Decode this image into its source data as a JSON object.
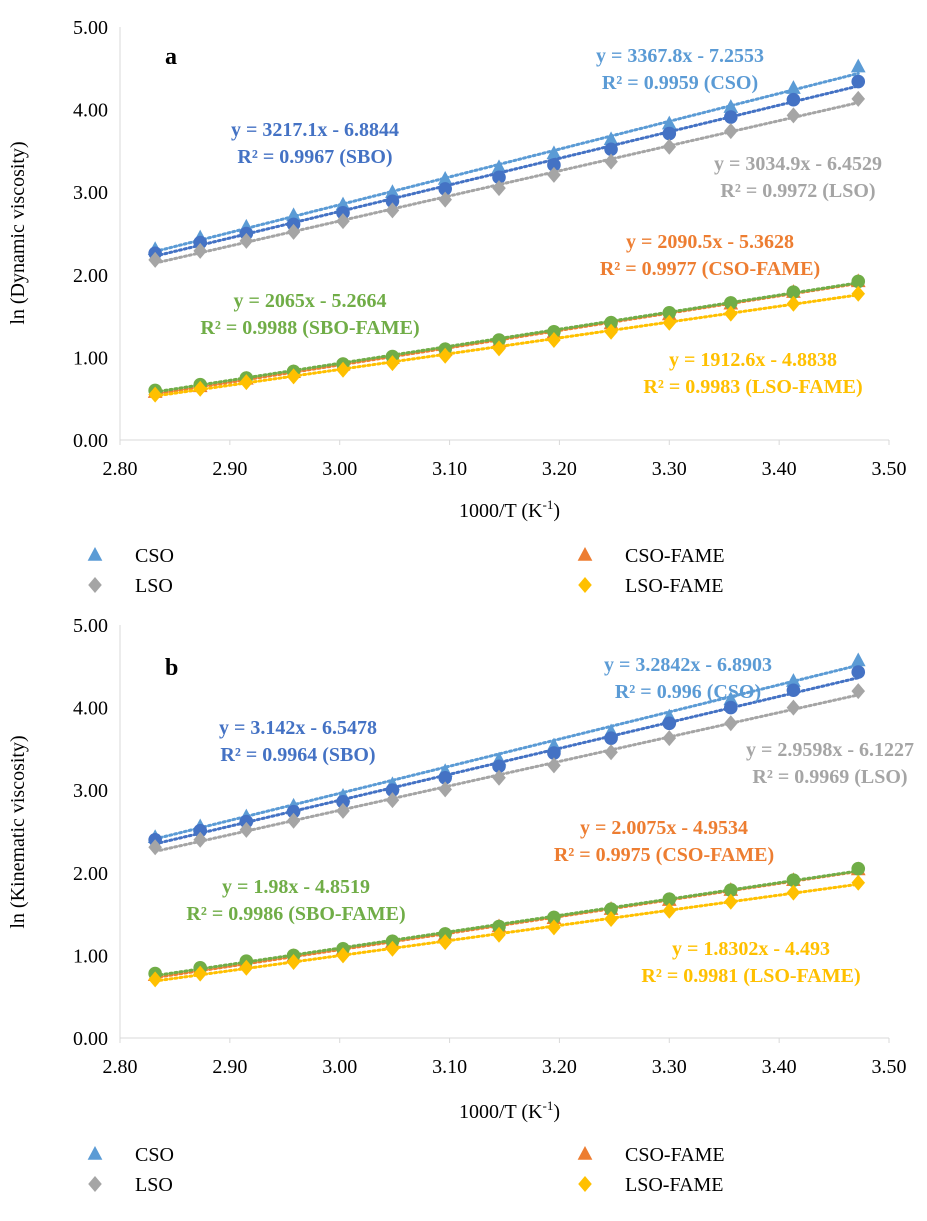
{
  "chart_data": [
    {
      "type": "scatter",
      "panel_label": "a",
      "xlabel": "1000/T (K",
      "xlabel_sup": "-1",
      "xlabel_end": ")",
      "ylabel": "ln (Dynamic viscosity)",
      "xlim": [
        2.8,
        3.5
      ],
      "ylim": [
        0.0,
        5.0
      ],
      "x_ticks": [
        "2.80",
        "2.90",
        "3.00",
        "3.10",
        "3.20",
        "3.30",
        "3.40",
        "3.50"
      ],
      "y_ticks": [
        "0.00",
        "1.00",
        "2.00",
        "3.00",
        "4.00",
        "5.00"
      ],
      "x": [
        2.832,
        2.873,
        2.915,
        2.958,
        3.003,
        3.048,
        3.096,
        3.145,
        3.195,
        3.247,
        3.3,
        3.356,
        3.413,
        3.472
      ],
      "series": [
        {
          "name": "CSO",
          "marker": "triangle",
          "color": "#5b9bd5",
          "trend": [
            3.3678,
            -7.2553
          ],
          "values": [
            2.31,
            2.45,
            2.58,
            2.72,
            2.85,
            3.0,
            3.16,
            3.3,
            3.47,
            3.64,
            3.83,
            4.03,
            4.26,
            4.52
          ]
        },
        {
          "name": "SBO",
          "marker": "circle",
          "color": "#4472c4",
          "trend": [
            3.2171,
            -6.8844
          ],
          "values": [
            2.26,
            2.39,
            2.5,
            2.61,
            2.75,
            2.89,
            3.04,
            3.18,
            3.33,
            3.52,
            3.71,
            3.91,
            4.12,
            4.34
          ]
        },
        {
          "name": "LSO",
          "marker": "diamond",
          "color": "#a5a5a5",
          "trend": [
            3.0349,
            -6.4529
          ],
          "values": [
            2.18,
            2.29,
            2.41,
            2.52,
            2.65,
            2.78,
            2.91,
            3.05,
            3.21,
            3.37,
            3.55,
            3.74,
            3.93,
            4.13
          ]
        },
        {
          "name": "CSO-FAME",
          "marker": "triangle",
          "color": "#ed7d31",
          "trend": [
            2.0905,
            -5.3628
          ],
          "values": [
            0.58,
            0.65,
            0.74,
            0.82,
            0.91,
            0.99,
            1.09,
            1.19,
            1.3,
            1.41,
            1.52,
            1.65,
            1.79,
            1.92
          ]
        },
        {
          "name": "SBO-FAME",
          "marker": "circle",
          "color": "#70ad47",
          "trend": [
            2.065,
            -5.2664
          ],
          "values": [
            0.6,
            0.67,
            0.75,
            0.83,
            0.92,
            1.01,
            1.1,
            1.21,
            1.31,
            1.42,
            1.54,
            1.66,
            1.79,
            1.92
          ]
        },
        {
          "name": "LSO-FAME",
          "marker": "diamond",
          "color": "#ffc000",
          "trend": [
            1.9126,
            -4.8838
          ],
          "values": [
            0.55,
            0.62,
            0.7,
            0.77,
            0.85,
            0.93,
            1.02,
            1.11,
            1.21,
            1.31,
            1.42,
            1.53,
            1.65,
            1.77
          ]
        }
      ],
      "annotations": [
        {
          "series": "CSO-trend",
          "color": "#5b9bd5",
          "line1": "y = 3367.8x - 7.2553",
          "line2": "R² = 0.9959 (CSO)"
        },
        {
          "series": "SBO-trend",
          "color": "#4472c4",
          "line1": "y = 3217.1x - 6.8844",
          "line2": "R² = 0.9967 (SBO)"
        },
        {
          "series": "LSO-trend",
          "color": "#a5a5a5",
          "line1": "y = 3034.9x - 6.4529",
          "line2": "R² = 0.9972 (LSO)"
        },
        {
          "series": "CSO-FAME-trend",
          "color": "#ed7d31",
          "line1": "y = 2090.5x - 5.3628",
          "line2": "R² = 0.9977 (CSO-FAME)"
        },
        {
          "series": "SBO-FAME-trend",
          "color": "#70ad47",
          "line1": "y = 2065x - 5.2664",
          "line2": "R² = 0.9988 (SBO-FAME)"
        },
        {
          "series": "LSO-FAME-trend",
          "color": "#ffc000",
          "line1": "y = 1912.6x - 4.8838",
          "line2": "R² = 0.9983 (LSO-FAME)"
        }
      ],
      "legend": [
        {
          "name": "CSO",
          "marker": "triangle",
          "color": "#5b9bd5"
        },
        {
          "name": "CSO-FAME",
          "marker": "triangle",
          "color": "#ed7d31"
        },
        {
          "name": "LSO",
          "marker": "diamond",
          "color": "#a5a5a5"
        },
        {
          "name": "LSO-FAME",
          "marker": "diamond",
          "color": "#ffc000"
        }
      ],
      "legend_placement": "bottom",
      "grid": false
    },
    {
      "type": "scatter",
      "panel_label": "b",
      "xlabel": "1000/T (K",
      "xlabel_sup": "-1",
      "xlabel_end": ")",
      "ylabel": "ln (Kinematic viscosity)",
      "xlim": [
        2.8,
        3.5
      ],
      "ylim": [
        0.0,
        5.0
      ],
      "x_ticks": [
        "2.80",
        "2.90",
        "3.00",
        "3.10",
        "3.20",
        "3.30",
        "3.40",
        "3.50"
      ],
      "y_ticks": [
        "0.00",
        "1.00",
        "2.00",
        "3.00",
        "4.00",
        "5.00"
      ],
      "x": [
        2.832,
        2.873,
        2.915,
        2.958,
        3.003,
        3.048,
        3.096,
        3.145,
        3.195,
        3.247,
        3.3,
        3.356,
        3.413,
        3.472
      ],
      "series": [
        {
          "name": "CSO",
          "marker": "triangle",
          "color": "#5b9bd5",
          "trend": [
            3.2842,
            -6.8903
          ],
          "values": [
            2.43,
            2.56,
            2.68,
            2.81,
            2.93,
            3.07,
            3.23,
            3.37,
            3.54,
            3.71,
            3.89,
            4.1,
            4.32,
            4.57
          ]
        },
        {
          "name": "SBO",
          "marker": "circle",
          "color": "#4472c4",
          "trend": [
            3.142,
            -6.5478
          ],
          "values": [
            2.4,
            2.51,
            2.62,
            2.74,
            2.86,
            3.0,
            3.15,
            3.29,
            3.45,
            3.63,
            3.81,
            4.0,
            4.21,
            4.43
          ]
        },
        {
          "name": "LSO",
          "marker": "diamond",
          "color": "#a5a5a5",
          "trend": [
            2.9598,
            -6.1227
          ],
          "values": [
            2.31,
            2.4,
            2.52,
            2.63,
            2.75,
            2.88,
            3.01,
            3.15,
            3.3,
            3.46,
            3.63,
            3.81,
            4.0,
            4.2
          ]
        },
        {
          "name": "CSO-FAME",
          "marker": "triangle",
          "color": "#ed7d31",
          "trend": [
            2.0075,
            -4.9534
          ],
          "values": [
            0.76,
            0.83,
            0.91,
            0.99,
            1.07,
            1.16,
            1.25,
            1.35,
            1.45,
            1.56,
            1.67,
            1.79,
            1.91,
            2.04
          ]
        },
        {
          "name": "SBO-FAME",
          "marker": "circle",
          "color": "#70ad47",
          "trend": [
            1.98,
            -4.8519
          ],
          "values": [
            0.78,
            0.85,
            0.93,
            1.0,
            1.08,
            1.17,
            1.26,
            1.35,
            1.46,
            1.56,
            1.68,
            1.79,
            1.91,
            2.05
          ]
        },
        {
          "name": "LSO-FAME",
          "marker": "diamond",
          "color": "#ffc000",
          "trend": [
            1.8302,
            -4.493
          ],
          "values": [
            0.71,
            0.78,
            0.85,
            0.92,
            1.0,
            1.08,
            1.16,
            1.25,
            1.34,
            1.44,
            1.54,
            1.65,
            1.76,
            1.88
          ]
        }
      ],
      "annotations": [
        {
          "series": "CSO-trend",
          "color": "#5b9bd5",
          "line1": "y = 3.2842x - 6.8903",
          "line2": "R² = 0.996 (CSO)"
        },
        {
          "series": "SBO-trend",
          "color": "#4472c4",
          "line1": "y = 3.142x - 6.5478",
          "line2": "R² = 0.9964 (SBO)"
        },
        {
          "series": "LSO-trend",
          "color": "#a5a5a5",
          "line1": "y = 2.9598x - 6.1227",
          "line2": "R² = 0.9969 (LSO)"
        },
        {
          "series": "CSO-FAME-trend",
          "color": "#ed7d31",
          "line1": "y = 2.0075x - 4.9534",
          "line2": "R² = 0.9975 (CSO-FAME)"
        },
        {
          "series": "SBO-FAME-trend",
          "color": "#70ad47",
          "line1": "y = 1.98x - 4.8519",
          "line2": "R² = 0.9986 (SBO-FAME)"
        },
        {
          "series": "LSO-FAME-trend",
          "color": "#ffc000",
          "line1": "y = 1.8302x - 4.493",
          "line2": "R² = 0.9981 (LSO-FAME)"
        }
      ],
      "legend": [
        {
          "name": "CSO",
          "marker": "triangle",
          "color": "#5b9bd5"
        },
        {
          "name": "CSO-FAME",
          "marker": "triangle",
          "color": "#ed7d31"
        },
        {
          "name": "LSO",
          "marker": "diamond",
          "color": "#a5a5a5"
        },
        {
          "name": "LSO-FAME",
          "marker": "diamond",
          "color": "#ffc000"
        }
      ],
      "legend_placement": "bottom",
      "grid": false
    }
  ]
}
